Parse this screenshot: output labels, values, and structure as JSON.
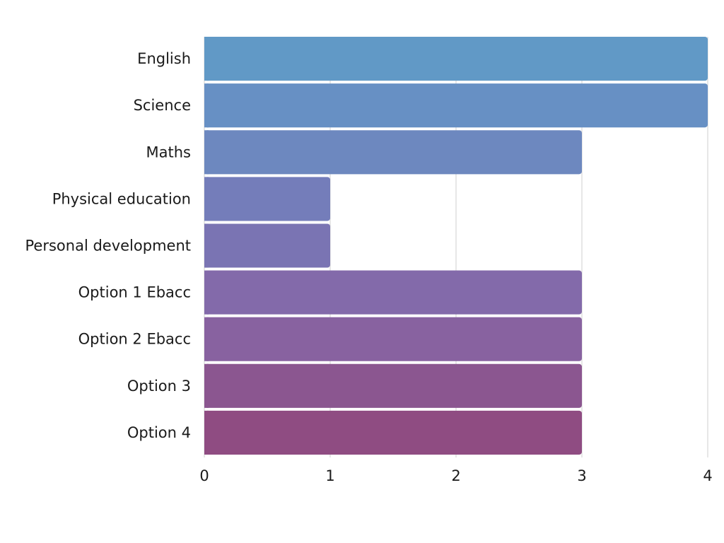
{
  "chart_data": {
    "type": "bar",
    "orientation": "horizontal",
    "categories": [
      "English",
      "Science",
      "Maths",
      "Physical education",
      "Personal development",
      "Option 1 Ebacc",
      "Option 2 Ebacc",
      "Option 3",
      "Option 4"
    ],
    "values": [
      4,
      4,
      3,
      1,
      1,
      3,
      3,
      3,
      3
    ],
    "colors": [
      "#6199c6",
      "#6790c4",
      "#6d88bf",
      "#747dba",
      "#7a74b3",
      "#836aaa",
      "#8862a0",
      "#8b5690",
      "#8f4c82"
    ],
    "title": "",
    "xlabel": "",
    "ylabel": "",
    "xlim": [
      0,
      4
    ],
    "xticks": [
      "0",
      "1",
      "2",
      "3",
      "4"
    ],
    "grid": true,
    "legend": "none"
  }
}
